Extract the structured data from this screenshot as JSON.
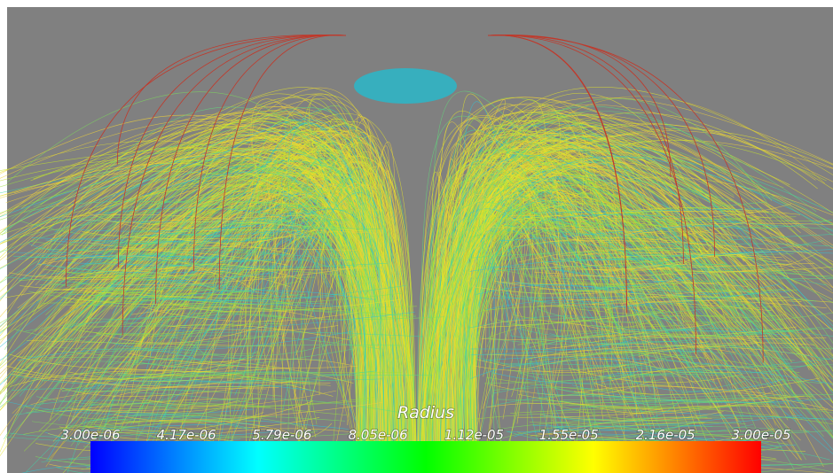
{
  "colorbar": {
    "title": "Radius",
    "log_scale": true,
    "range": [
      3e-06,
      3e-05
    ],
    "ticks": [
      {
        "value": 3e-06,
        "label": "3.00e-06"
      },
      {
        "value": 4.17e-06,
        "label": "4.17e-06"
      },
      {
        "value": 5.79e-06,
        "label": "5.79e-06"
      },
      {
        "value": 8.05e-06,
        "label": "8.05e-06"
      },
      {
        "value": 1.12e-05,
        "label": "1.12e-05"
      },
      {
        "value": 1.55e-05,
        "label": "1.55e-05"
      },
      {
        "value": 2.16e-05,
        "label": "2.16e-05"
      },
      {
        "value": 3e-05,
        "label": "3.00e-05"
      }
    ],
    "colormap": [
      "#0000ff",
      "#00ffff",
      "#00ff00",
      "#ffff00",
      "#ff0000"
    ]
  }
}
